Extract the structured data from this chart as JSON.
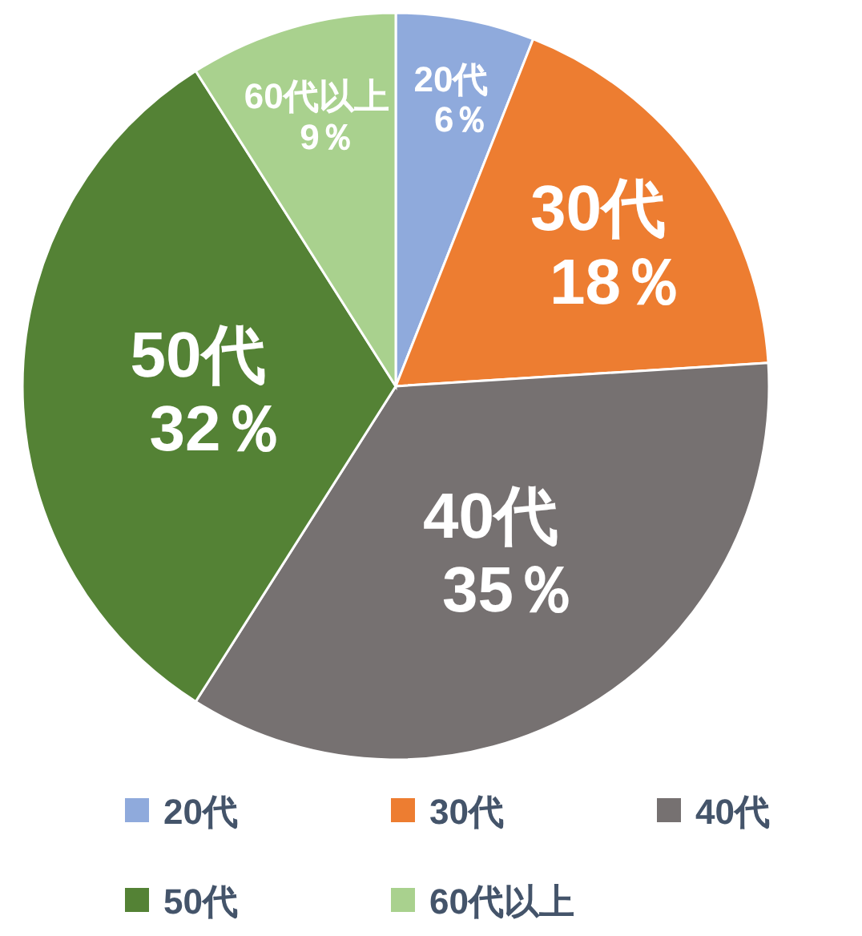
{
  "chart_data": {
    "type": "pie",
    "categories": [
      "20代",
      "30代",
      "40代",
      "50代",
      "60代以上"
    ],
    "values": [
      6,
      18,
      35,
      32,
      9
    ],
    "value_labels": [
      "6％",
      "18％",
      "35％",
      "32％",
      "9％"
    ],
    "colors": [
      "#8faadc",
      "#ed7d31",
      "#767171",
      "#548235",
      "#a9d18e"
    ],
    "legend": "bottom"
  }
}
